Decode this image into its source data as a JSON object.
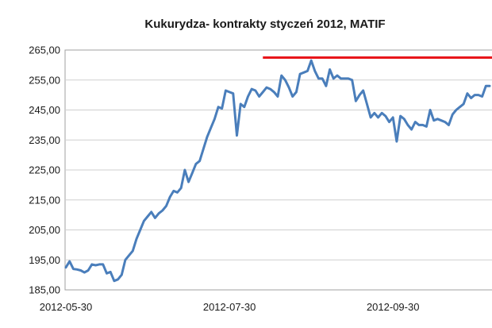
{
  "chart_data": {
    "type": "line",
    "title": "Kukurydza- kontrakty styczeń 2012, MATIF",
    "xlabel": "",
    "ylabel": "",
    "ylim": [
      185,
      265
    ],
    "y_ticks": [
      "185,00",
      "195,00",
      "205,00",
      "215,00",
      "225,00",
      "235,00",
      "245,00",
      "255,00",
      "265,00"
    ],
    "x_ticks": [
      {
        "label": "2012-05-30",
        "index": 0
      },
      {
        "label": "2012-07-30",
        "index": 44
      },
      {
        "label": "2012-09-30",
        "index": 88
      }
    ],
    "grid": "horizontal",
    "series": [
      {
        "color": "#4a7ebb",
        "values": [
          192.5,
          194.5,
          192,
          191.8,
          191.5,
          190.8,
          191.5,
          193.5,
          193.2,
          193.5,
          193.5,
          190.5,
          191,
          188,
          188.5,
          190,
          195,
          196.5,
          198,
          202,
          205,
          208,
          209.5,
          211,
          209,
          210.5,
          211.5,
          213,
          216,
          218,
          217.5,
          219,
          225,
          221,
          224,
          227,
          228,
          232,
          236,
          239,
          242,
          246,
          245.5,
          251.5,
          251,
          250.5,
          236.5,
          247,
          246,
          249.5,
          252,
          251.5,
          249.5,
          251,
          252.5,
          252,
          251,
          249.5,
          256.5,
          255,
          252.5,
          249.5,
          251,
          257,
          257.5,
          258,
          261.5,
          258,
          255.5,
          255.5,
          253,
          258.5,
          255.5,
          256.5,
          255.5,
          255.5,
          255.5,
          255,
          248,
          250,
          251.5,
          247,
          242.5,
          244,
          242.5,
          244,
          243,
          241,
          242.5,
          234.5,
          243,
          242,
          240,
          238.5,
          241,
          240,
          240,
          239.5,
          245,
          241.5,
          242,
          241.5,
          241,
          240,
          243.5,
          245,
          246,
          247,
          250.5,
          249,
          250,
          250,
          249.5,
          253,
          253
        ]
      }
    ],
    "annotations": [
      {
        "type": "horizontal_line",
        "y": 262.5,
        "from_index": 53,
        "to_index": 119,
        "color": "#e8161b"
      }
    ]
  }
}
